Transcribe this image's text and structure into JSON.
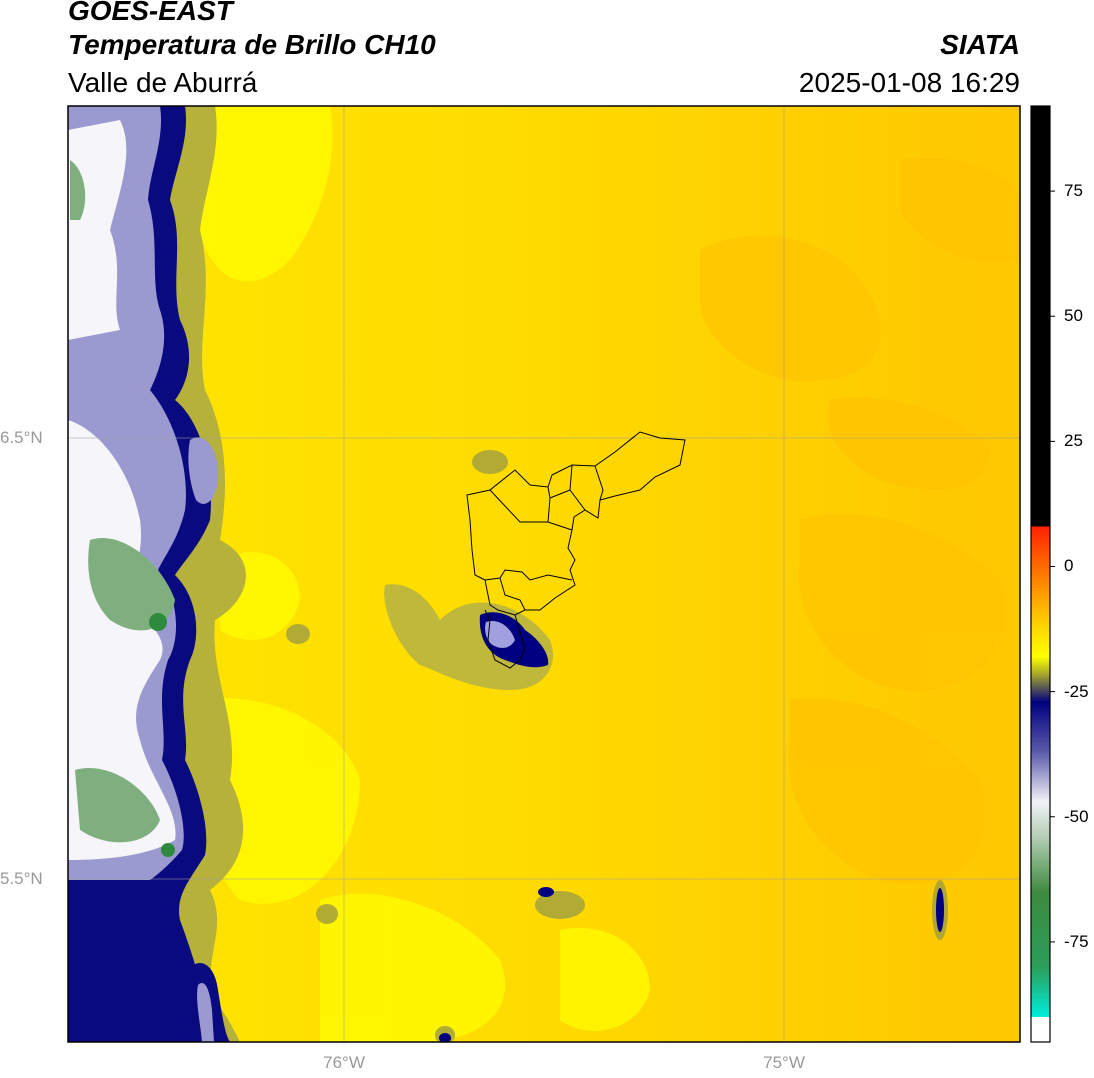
{
  "header": {
    "satellite": "GOES-EAST",
    "product": "Temperatura de Brillo CH10",
    "region": "Valle de Aburrá",
    "organization": "SIATA",
    "datetime": "2025-01-08 16:29"
  },
  "map": {
    "lat_labels": [
      "6.5°N",
      "5.5°N"
    ],
    "lon_labels": [
      "76°W",
      "75°W"
    ],
    "extent": {
      "lon_min": -76.62,
      "lon_max": -74.54,
      "lat_min": 5.13,
      "lat_max": 7.25
    },
    "gridlines": true
  },
  "colorbar": {
    "ticks": [
      "75",
      "50",
      "25",
      "0",
      "-25",
      "-50",
      "-75"
    ],
    "tick_values": [
      75,
      50,
      25,
      0,
      -25,
      -50,
      -75
    ],
    "range": [
      -95,
      92
    ],
    "stops": [
      {
        "value": 92,
        "color": "#000000"
      },
      {
        "value": 8,
        "color": "#000000"
      },
      {
        "value": 8,
        "color": "#ff2200"
      },
      {
        "value": -5,
        "color": "#ff9900"
      },
      {
        "value": -12,
        "color": "#ffd500"
      },
      {
        "value": -18,
        "color": "#ffff00"
      },
      {
        "value": -22,
        "color": "#999933"
      },
      {
        "value": -27,
        "color": "#000080"
      },
      {
        "value": -37,
        "color": "#5a5aaa"
      },
      {
        "value": -47,
        "color": "#f2f2f8"
      },
      {
        "value": -55,
        "color": "#aac8aa"
      },
      {
        "value": -65,
        "color": "#3e8a3e"
      },
      {
        "value": -80,
        "color": "#2a9e5a"
      },
      {
        "value": -90,
        "color": "#00eedd"
      },
      {
        "value": -90,
        "color": "#ffffff"
      },
      {
        "value": -95,
        "color": "#ffffff"
      }
    ]
  },
  "colors": {
    "background_field": "#ffd700",
    "warm_field": "#ffc600",
    "cloud_olive": "#a6a233",
    "cloud_navy": "#000080",
    "cloud_white": "#f0f0f8",
    "cloud_green": "#7fae7f"
  }
}
